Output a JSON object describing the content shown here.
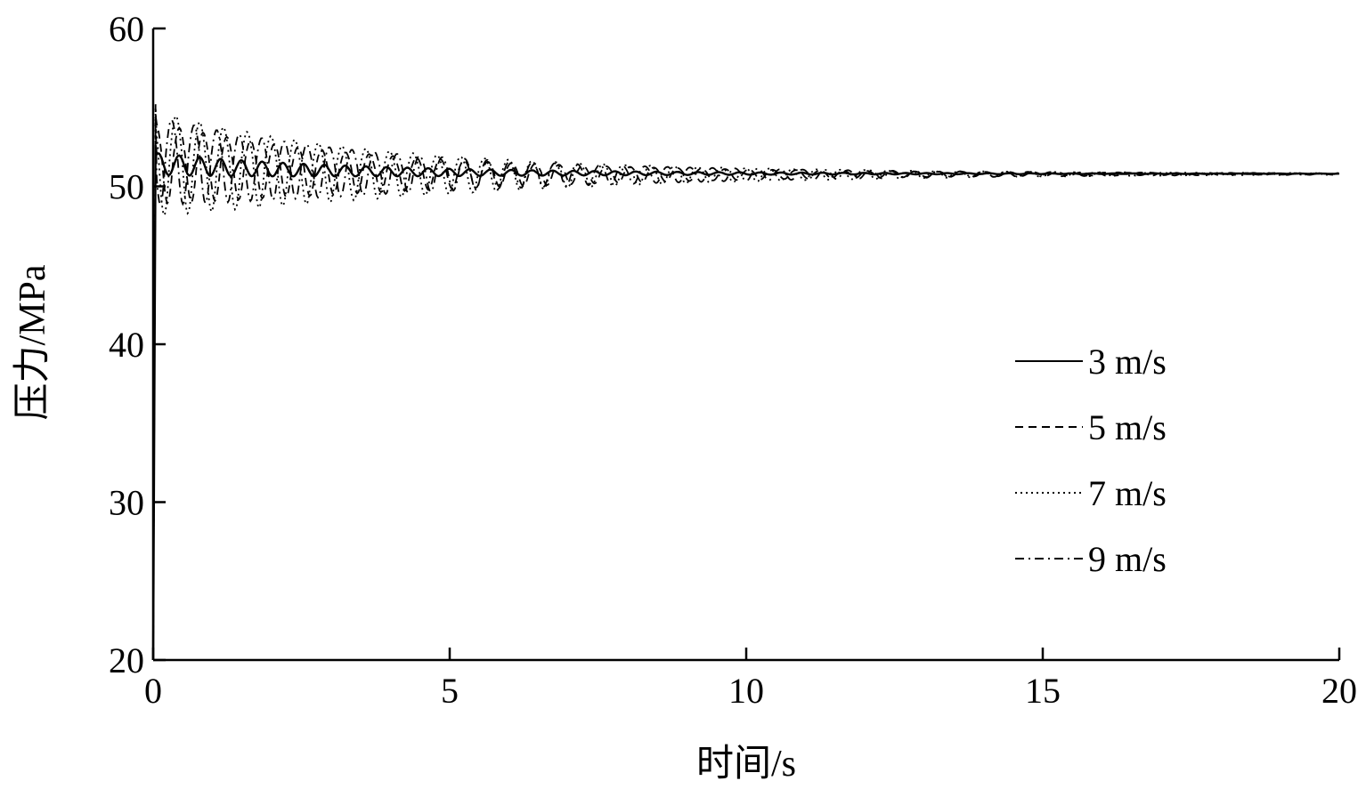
{
  "chart_data": {
    "type": "line",
    "xlabel": "时间/s",
    "ylabel": "压力/MPa",
    "xlim": [
      0,
      20
    ],
    "ylim": [
      20,
      60
    ],
    "xticks": [
      "0",
      "5",
      "10",
      "15",
      "20"
    ],
    "yticks": [
      "20",
      "30",
      "40",
      "50",
      "60"
    ],
    "grid": false,
    "legend_position": "right",
    "series": [
      {
        "name": "3 m/s",
        "line_style": "solid",
        "initial_peak": 52.6,
        "oscillation_amplitude": 0.7,
        "period": 0.35,
        "settle_time": 14.5,
        "final_value": 50.8
      },
      {
        "name": "5 m/s",
        "line_style": "dashed",
        "initial_peak": 54.5,
        "oscillation_amplitude": 2.0,
        "period": 0.4,
        "settle_time": 15.5,
        "final_value": 50.8
      },
      {
        "name": "7 m/s",
        "line_style": "dotted",
        "initial_peak": 55.0,
        "oscillation_amplitude": 2.6,
        "period": 0.4,
        "settle_time": 15.5,
        "final_value": 50.8
      },
      {
        "name": "9 m/s",
        "line_style": "dashdot",
        "initial_peak": 55.2,
        "oscillation_amplitude": 2.2,
        "period": 0.38,
        "settle_time": 16.0,
        "final_value": 50.8
      }
    ]
  }
}
